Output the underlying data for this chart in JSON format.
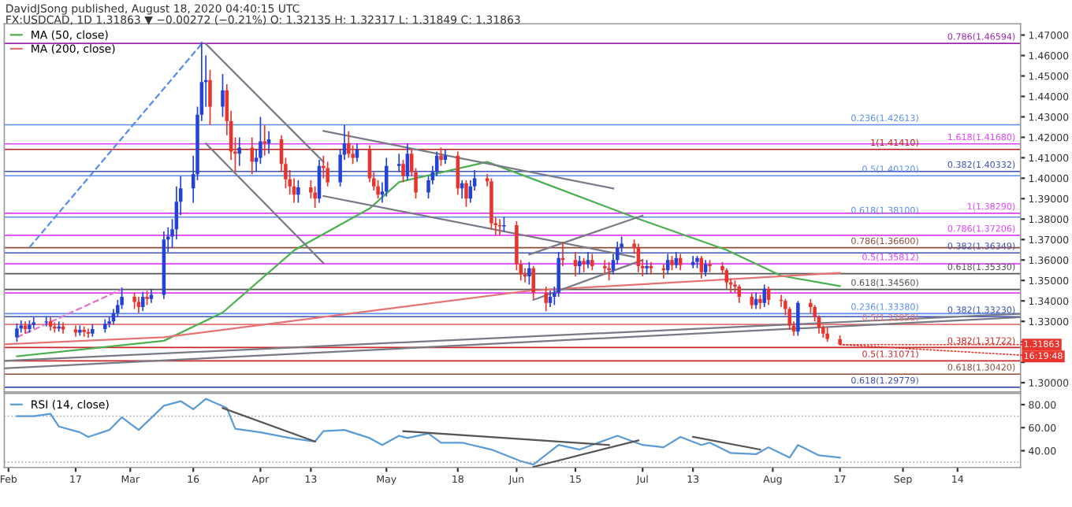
{
  "chart_data": [
    {
      "type": "candlestick",
      "title": "DavidJSong published, August 18, 2020 04:40:15 UTC",
      "subtitle": "FX:USDCAD, 1D 1.31863 ▼ −0.00272 (−0.21%) O: 1.32135 H: 1.32317 L: 1.31849 C: 1.31863",
      "x": [
        "2020-02-03",
        "2020-02-04",
        "2020-02-05",
        "2020-02-06",
        "2020-02-07",
        "2020-02-10",
        "2020-02-11",
        "2020-02-12",
        "2020-02-13",
        "2020-02-14",
        "2020-02-17",
        "2020-02-18",
        "2020-02-19",
        "2020-02-20",
        "2020-02-21",
        "2020-02-24",
        "2020-02-25",
        "2020-02-26",
        "2020-02-27",
        "2020-02-28",
        "2020-03-02",
        "2020-03-03",
        "2020-03-04",
        "2020-03-05",
        "2020-03-06",
        "2020-03-09",
        "2020-03-10",
        "2020-03-11",
        "2020-03-12",
        "2020-03-13",
        "2020-03-16",
        "2020-03-17",
        "2020-03-18",
        "2020-03-19",
        "2020-03-20",
        "2020-03-23",
        "2020-03-24",
        "2020-03-25",
        "2020-03-26",
        "2020-03-27",
        "2020-03-30",
        "2020-03-31",
        "2020-04-01",
        "2020-04-02",
        "2020-04-03",
        "2020-04-06",
        "2020-04-07",
        "2020-04-08",
        "2020-04-09",
        "2020-04-10",
        "2020-04-13",
        "2020-04-14",
        "2020-04-15",
        "2020-04-16",
        "2020-04-17",
        "2020-04-20",
        "2020-04-21",
        "2020-04-22",
        "2020-04-23",
        "2020-04-24",
        "2020-04-27",
        "2020-04-28",
        "2020-04-29",
        "2020-04-30",
        "2020-05-01",
        "2020-05-04",
        "2020-05-05",
        "2020-05-06",
        "2020-05-07",
        "2020-05-08",
        "2020-05-11",
        "2020-05-12",
        "2020-05-13",
        "2020-05-14",
        "2020-05-15",
        "2020-05-18",
        "2020-05-19",
        "2020-05-20",
        "2020-05-21",
        "2020-05-22",
        "2020-05-25",
        "2020-05-26",
        "2020-05-27",
        "2020-05-28",
        "2020-05-29",
        "2020-06-01",
        "2020-06-02",
        "2020-06-03",
        "2020-06-04",
        "2020-06-05",
        "2020-06-08",
        "2020-06-09",
        "2020-06-10",
        "2020-06-11",
        "2020-06-12",
        "2020-06-15",
        "2020-06-16",
        "2020-06-17",
        "2020-06-18",
        "2020-06-19",
        "2020-06-22",
        "2020-06-23",
        "2020-06-24",
        "2020-06-25",
        "2020-06-26",
        "2020-06-29",
        "2020-06-30",
        "2020-07-01",
        "2020-07-02",
        "2020-07-03",
        "2020-07-06",
        "2020-07-07",
        "2020-07-08",
        "2020-07-09",
        "2020-07-10",
        "2020-07-13",
        "2020-07-14",
        "2020-07-15",
        "2020-07-16",
        "2020-07-17",
        "2020-07-20",
        "2020-07-21",
        "2020-07-22",
        "2020-07-23",
        "2020-07-24",
        "2020-07-27",
        "2020-07-28",
        "2020-07-29",
        "2020-07-30",
        "2020-07-31",
        "2020-08-03",
        "2020-08-04",
        "2020-08-05",
        "2020-08-06",
        "2020-08-07",
        "2020-08-10",
        "2020-08-11",
        "2020-08-12",
        "2020-08-13",
        "2020-08-14",
        "2020-08-17"
      ],
      "ohlc": [
        [
          1.3222,
          1.329,
          1.32,
          1.3265
        ],
        [
          1.3265,
          1.3305,
          1.3245,
          1.328
        ],
        [
          1.328,
          1.33,
          1.324,
          1.3262
        ],
        [
          1.3262,
          1.3305,
          1.3245,
          1.3282
        ],
        [
          1.3282,
          1.332,
          1.3265,
          1.3295
        ],
        [
          1.3295,
          1.3325,
          1.3275,
          1.33
        ],
        [
          1.33,
          1.332,
          1.3255,
          1.3275
        ],
        [
          1.3275,
          1.3295,
          1.3245,
          1.3265
        ],
        [
          1.3265,
          1.33,
          1.325,
          1.3275
        ],
        [
          1.3275,
          1.3295,
          1.324,
          1.326
        ],
        [
          1.326,
          1.328,
          1.3225,
          1.3245
        ],
        [
          1.3245,
          1.328,
          1.323,
          1.3258
        ],
        [
          1.3258,
          1.3275,
          1.3225,
          1.3248
        ],
        [
          1.3248,
          1.3265,
          1.322,
          1.324
        ],
        [
          1.324,
          1.3285,
          1.3225,
          1.3262
        ],
        [
          1.3262,
          1.331,
          1.3245,
          1.3288
        ],
        [
          1.3288,
          1.332,
          1.327,
          1.33
        ],
        [
          1.33,
          1.336,
          1.3285,
          1.334
        ],
        [
          1.334,
          1.3405,
          1.332,
          1.338
        ],
        [
          1.338,
          1.3465,
          1.336,
          1.342
        ],
        [
          1.342,
          1.344,
          1.336,
          1.3395
        ],
        [
          1.3395,
          1.342,
          1.334,
          1.337
        ],
        [
          1.337,
          1.3445,
          1.335,
          1.342
        ],
        [
          1.342,
          1.345,
          1.338,
          1.341
        ],
        [
          1.341,
          1.346,
          1.339,
          1.343
        ],
        [
          1.343,
          1.374,
          1.341,
          1.37
        ],
        [
          1.37,
          1.376,
          1.364,
          1.3715
        ],
        [
          1.3715,
          1.38,
          1.366,
          1.375
        ],
        [
          1.375,
          1.396,
          1.37,
          1.3885
        ],
        [
          1.3885,
          1.401,
          1.382,
          1.395
        ],
        [
          1.395,
          1.411,
          1.388,
          1.402
        ],
        [
          1.402,
          1.435,
          1.399,
          1.431
        ],
        [
          1.431,
          1.4667,
          1.428,
          1.447
        ],
        [
          1.447,
          1.46,
          1.435,
          1.448
        ],
        [
          1.448,
          1.453,
          1.426,
          1.435
        ],
        [
          1.435,
          1.451,
          1.43,
          1.443
        ],
        [
          1.443,
          1.446,
          1.421,
          1.428
        ],
        [
          1.428,
          1.433,
          1.409,
          1.413
        ],
        [
          1.413,
          1.42,
          1.403,
          1.412
        ],
        [
          1.412,
          1.42,
          1.406,
          1.415
        ],
        [
          1.415,
          1.42,
          1.402,
          1.408
        ],
        [
          1.408,
          1.414,
          1.403,
          1.41
        ],
        [
          1.41,
          1.43,
          1.407,
          1.418
        ],
        [
          1.418,
          1.426,
          1.411,
          1.417
        ],
        [
          1.417,
          1.423,
          1.412,
          1.419
        ],
        [
          1.419,
          1.421,
          1.403,
          1.407
        ],
        [
          1.407,
          1.41,
          1.395,
          1.3995
        ],
        [
          1.3995,
          1.404,
          1.392,
          1.396
        ],
        [
          1.396,
          1.4,
          1.388,
          1.392
        ],
        [
          1.392,
          1.399,
          1.388,
          1.3955
        ],
        [
          1.3955,
          1.399,
          1.39,
          1.393
        ],
        [
          1.393,
          1.396,
          1.3855,
          1.39
        ],
        [
          1.39,
          1.409,
          1.388,
          1.406
        ],
        [
          1.406,
          1.411,
          1.4,
          1.405
        ],
        [
          1.405,
          1.408,
          1.396,
          1.398
        ],
        [
          1.398,
          1.414,
          1.396,
          1.4115
        ],
        [
          1.4115,
          1.426,
          1.409,
          1.417
        ],
        [
          1.417,
          1.423,
          1.41,
          1.412
        ],
        [
          1.412,
          1.416,
          1.407,
          1.41
        ],
        [
          1.41,
          1.417,
          1.408,
          1.414
        ],
        [
          1.414,
          1.416,
          1.398,
          1.4
        ],
        [
          1.4,
          1.403,
          1.394,
          1.396
        ],
        [
          1.396,
          1.399,
          1.39,
          1.392
        ],
        [
          1.392,
          1.398,
          1.388,
          1.3935
        ],
        [
          1.3935,
          1.41,
          1.391,
          1.406
        ],
        [
          1.406,
          1.412,
          1.403,
          1.407
        ],
        [
          1.407,
          1.409,
          1.398,
          1.401
        ],
        [
          1.401,
          1.417,
          1.399,
          1.412
        ],
        [
          1.412,
          1.414,
          1.401,
          1.403
        ],
        [
          1.403,
          1.405,
          1.39,
          1.393
        ],
        [
          1.393,
          1.401,
          1.39,
          1.399
        ],
        [
          1.399,
          1.406,
          1.397,
          1.403
        ],
        [
          1.403,
          1.413,
          1.401,
          1.411
        ],
        [
          1.411,
          1.415,
          1.406,
          1.409
        ],
        [
          1.409,
          1.414,
          1.407,
          1.411
        ],
        [
          1.411,
          1.413,
          1.392,
          1.395
        ],
        [
          1.395,
          1.399,
          1.39,
          1.3975
        ],
        [
          1.3975,
          1.399,
          1.386,
          1.39
        ],
        [
          1.39,
          1.399,
          1.388,
          1.396
        ],
        [
          1.396,
          1.404,
          1.394,
          1.4
        ],
        [
          1.4,
          1.402,
          1.396,
          1.3985
        ],
        [
          1.3985,
          1.4,
          1.375,
          1.378
        ],
        [
          1.378,
          1.381,
          1.372,
          1.377
        ],
        [
          1.377,
          1.38,
          1.372,
          1.3765
        ],
        [
          1.3765,
          1.381,
          1.374,
          1.377
        ],
        [
          1.377,
          1.379,
          1.355,
          1.358
        ],
        [
          1.358,
          1.36,
          1.35,
          1.353
        ],
        [
          1.353,
          1.356,
          1.349,
          1.352
        ],
        [
          1.352,
          1.359,
          1.348,
          1.356
        ],
        [
          1.356,
          1.357,
          1.341,
          1.344
        ],
        [
          1.344,
          1.347,
          1.335,
          1.339
        ],
        [
          1.339,
          1.345,
          1.337,
          1.342
        ],
        [
          1.342,
          1.347,
          1.338,
          1.344
        ],
        [
          1.344,
          1.364,
          1.342,
          1.361
        ],
        [
          1.361,
          1.369,
          1.357,
          1.36
        ],
        [
          1.36,
          1.364,
          1.352,
          1.357
        ],
        [
          1.357,
          1.362,
          1.353,
          1.3595
        ],
        [
          1.3595,
          1.361,
          1.354,
          1.358
        ],
        [
          1.358,
          1.364,
          1.356,
          1.36
        ],
        [
          1.36,
          1.363,
          1.355,
          1.357
        ],
        [
          1.357,
          1.36,
          1.353,
          1.356
        ],
        [
          1.356,
          1.359,
          1.35,
          1.355
        ],
        [
          1.355,
          1.363,
          1.353,
          1.36
        ],
        [
          1.36,
          1.369,
          1.358,
          1.366
        ],
        [
          1.366,
          1.3715,
          1.364,
          1.368
        ],
        [
          1.368,
          1.37,
          1.363,
          1.366
        ],
        [
          1.366,
          1.368,
          1.354,
          1.357
        ],
        [
          1.357,
          1.36,
          1.352,
          1.356
        ],
        [
          1.356,
          1.36,
          1.353,
          1.357
        ],
        [
          1.357,
          1.359,
          1.353,
          1.356
        ],
        [
          1.356,
          1.358,
          1.351,
          1.355
        ],
        [
          1.355,
          1.363,
          1.353,
          1.36
        ],
        [
          1.36,
          1.362,
          1.355,
          1.3575
        ],
        [
          1.3575,
          1.364,
          1.356,
          1.361
        ],
        [
          1.361,
          1.363,
          1.355,
          1.3575
        ],
        [
          1.3575,
          1.362,
          1.356,
          1.359
        ],
        [
          1.359,
          1.362,
          1.356,
          1.361
        ],
        [
          1.361,
          1.362,
          1.351,
          1.354
        ],
        [
          1.354,
          1.36,
          1.352,
          1.358
        ],
        [
          1.358,
          1.36,
          1.354,
          1.357
        ],
        [
          1.357,
          1.359,
          1.353,
          1.355
        ],
        [
          1.355,
          1.356,
          1.346,
          1.349
        ],
        [
          1.349,
          1.351,
          1.344,
          1.348
        ],
        [
          1.348,
          1.35,
          1.344,
          1.347
        ],
        [
          1.347,
          1.348,
          1.339,
          1.342
        ],
        [
          1.342,
          1.344,
          1.336,
          1.338
        ],
        [
          1.338,
          1.344,
          1.336,
          1.341
        ],
        [
          1.341,
          1.343,
          1.336,
          1.339
        ],
        [
          1.339,
          1.348,
          1.337,
          1.346
        ],
        [
          1.346,
          1.347,
          1.338,
          1.3405
        ],
        [
          1.3405,
          1.343,
          1.337,
          1.34
        ],
        [
          1.34,
          1.341,
          1.333,
          1.336
        ],
        [
          1.336,
          1.337,
          1.326,
          1.328
        ],
        [
          1.328,
          1.33,
          1.323,
          1.325
        ],
        [
          1.325,
          1.34,
          1.323,
          1.339
        ],
        [
          1.339,
          1.341,
          1.334,
          1.337
        ],
        [
          1.337,
          1.338,
          1.33,
          1.332
        ],
        [
          1.332,
          1.333,
          1.324,
          1.327
        ],
        [
          1.327,
          1.328,
          1.322,
          1.324
        ],
        [
          1.324,
          1.327,
          1.32,
          1.3214
        ],
        [
          1.32135,
          1.32317,
          1.31849,
          1.31863
        ]
      ],
      "colors": [
        "#2343d8",
        "#2343d8",
        "#e8342c",
        "#2343d8",
        "#2343d8",
        "#2343d8",
        "#e8342c",
        "#e8342c",
        "#2343d8",
        "#e8342c",
        "#e8342c",
        "#2343d8",
        "#e8342c",
        "#e8342c",
        "#2343d8",
        "#2343d8",
        "#2343d8",
        "#2343d8",
        "#2343d8",
        "#2343d8",
        "#e8342c",
        "#e8342c",
        "#2343d8",
        "#e8342c",
        "#2343d8",
        "#2343d8",
        "#2343d8",
        "#2343d8",
        "#2343d8",
        "#2343d8",
        "#2343d8",
        "#2343d8",
        "#2343d8",
        "#2343d8",
        "#e8342c",
        "#2343d8",
        "#e8342c",
        "#e8342c",
        "#e8342c",
        "#2343d8",
        "#e8342c",
        "#2343d8",
        "#2343d8",
        "#e8342c",
        "#2343d8",
        "#e8342c",
        "#e8342c",
        "#e8342c",
        "#e8342c",
        "#2343d8",
        "#e8342c",
        "#e8342c",
        "#2343d8",
        "#e8342c",
        "#e8342c",
        "#2343d8",
        "#2343d8",
        "#e8342c",
        "#e8342c",
        "#2343d8",
        "#e8342c",
        "#e8342c",
        "#e8342c",
        "#2343d8",
        "#2343d8",
        "#2343d8",
        "#e8342c",
        "#2343d8",
        "#e8342c",
        "#e8342c",
        "#2343d8",
        "#2343d8",
        "#2343d8",
        "#e8342c",
        "#2343d8",
        "#e8342c",
        "#2343d8",
        "#e8342c",
        "#2343d8",
        "#2343d8",
        "#e8342c",
        "#e8342c",
        "#e8342c",
        "#e8342c",
        "#2343d8",
        "#e8342c",
        "#e8342c",
        "#e8342c",
        "#2343d8",
        "#e8342c",
        "#e8342c",
        "#2343d8",
        "#2343d8",
        "#2343d8",
        "#e8342c",
        "#e8342c",
        "#2343d8",
        "#e8342c",
        "#2343d8",
        "#e8342c",
        "#e8342c",
        "#e8342c",
        "#2343d8",
        "#2343d8",
        "#2343d8",
        "#e8342c",
        "#e8342c",
        "#e8342c",
        "#2343d8",
        "#e8342c",
        "#e8342c",
        "#2343d8",
        "#e8342c",
        "#2343d8",
        "#e8342c",
        "#2343d8",
        "#2343d8",
        "#e8342c",
        "#2343d8",
        "#e8342c",
        "#e8342c",
        "#e8342c",
        "#e8342c",
        "#e8342c",
        "#e8342c",
        "#e8342c",
        "#2343d8",
        "#e8342c",
        "#2343d8",
        "#e8342c",
        "#e8342c",
        "#e8342c",
        "#e8342c",
        "#e8342c",
        "#2343d8",
        "#e8342c",
        "#e8342c",
        "#e8342c",
        "#e8342c",
        "#e8342c",
        "#e8342c"
      ],
      "series": [
        {
          "type": "line",
          "name": "MA (50, close)",
          "color": "#4caf50",
          "x": [
            "2020-02-03",
            "2020-03-09",
            "2020-03-23",
            "2020-04-09",
            "2020-04-27",
            "2020-05-04",
            "2020-05-25",
            "2020-06-04",
            "2020-06-30",
            "2020-07-21",
            "2020-08-03",
            "2020-08-17"
          ],
          "values": [
            1.3129,
            1.3205,
            1.3343,
            1.3647,
            1.3852,
            1.3981,
            1.408,
            1.4003,
            1.3801,
            1.3649,
            1.3523,
            1.3472
          ]
        },
        {
          "type": "line",
          "name": "MA (200, close)",
          "color": "#e57373",
          "x": [
            "2020-01-31",
            "2020-03-09",
            "2020-06-04",
            "2020-08-17"
          ],
          "values": [
            1.3188,
            1.3222,
            1.345,
            1.3537
          ]
        },
        {
          "type": "line",
          "color": "#787b86",
          "x": [
            "2020-03-19",
            "2020-04-16"
          ],
          "values": [
            1.4657,
            1.408
          ]
        },
        {
          "type": "line",
          "color": "#787b86",
          "x": [
            "2020-03-19",
            "2020-04-16"
          ],
          "values": [
            1.417,
            1.3585
          ]
        },
        {
          "type": "line",
          "color": "#787b86",
          "x": [
            "2020-04-16",
            "2020-06-24"
          ],
          "values": [
            1.4231,
            1.395
          ]
        },
        {
          "type": "line",
          "color": "#787b86",
          "x": [
            "2020-04-16",
            "2020-06-29"
          ],
          "values": [
            1.3913,
            1.3615
          ]
        },
        {
          "type": "line",
          "color": "#787b86",
          "x": [
            "2020-06-04",
            "2020-07-01"
          ],
          "values": [
            1.3627,
            1.3817
          ]
        },
        {
          "type": "line",
          "color": "#787b86",
          "x": [
            "2020-06-05",
            "2020-07-01"
          ],
          "values": [
            1.3405,
            1.36
          ]
        },
        {
          "type": "line",
          "color": "#787b86",
          "x": [
            "2020-01-31",
            "2020-09-29"
          ],
          "values": [
            1.3107,
            1.3337
          ]
        },
        {
          "type": "line",
          "color": "#787b86",
          "x": [
            "2020-01-31",
            "2020-09-29"
          ],
          "values": [
            1.307,
            1.332
          ]
        },
        {
          "type": "line",
          "color": "#5b8def",
          "line_style": "dashed",
          "x": [
            "2020-02-06",
            "2020-03-18"
          ],
          "values": [
            1.3662,
            1.4657
          ]
        },
        {
          "type": "line",
          "color": "#e573c8",
          "line_style": "dashed",
          "x": [
            "2020-02-03",
            "2020-02-28"
          ],
          "values": [
            1.3222,
            1.3457
          ]
        }
      ],
      "ref_lines": [
        {
          "axis": "y",
          "value": 1.46594,
          "label": "0.786(1.46594)",
          "color": "#9c27b0"
        },
        {
          "axis": "y",
          "value": 1.42613,
          "label": "0.236(1.42613)",
          "color": "#5b8def"
        },
        {
          "axis": "y",
          "value": 1.4168,
          "label": "1.618(1.41680)",
          "color": "#e040fb"
        },
        {
          "axis": "y",
          "value": 1.4141,
          "label": "1(1.41410)",
          "color": "#b71c1c"
        },
        {
          "axis": "y",
          "value": 1.40332,
          "label": "0.382(1.40332)",
          "color": "#3f51b5"
        },
        {
          "axis": "y",
          "value": 1.4012,
          "label": "0.5(1.40120)",
          "color": "#5b8def"
        },
        {
          "axis": "y",
          "value": 1.3829,
          "label": "1(1.38290)",
          "color": "#e040fb"
        },
        {
          "axis": "y",
          "value": 1.381,
          "label": "0.618(1.38100)",
          "color": "#5b8def"
        },
        {
          "axis": "y",
          "value": 1.37206,
          "label": "0.786(1.37206)",
          "color": "#e040fb"
        },
        {
          "axis": "y",
          "value": 1.366,
          "label": "0.786(1.36600)",
          "color": "#8d4b3a"
        },
        {
          "axis": "y",
          "value": 1.36349,
          "label": "0.382(1.36349)",
          "color": "#3f51b5"
        },
        {
          "axis": "y",
          "value": 1.35812,
          "label": "0.5(1.35812)",
          "color": "#e040fb"
        },
        {
          "axis": "y",
          "value": 1.3533,
          "label": "0.618(1.35330)",
          "color": "#555555"
        },
        {
          "axis": "y",
          "value": 1.3456,
          "label": "0.618(1.34560)",
          "color": "#555555"
        },
        {
          "axis": "y",
          "value": 1.3439,
          "color": "#e040fb"
        },
        {
          "axis": "y",
          "value": 1.3338,
          "label": "0.236(1.33380)",
          "color": "#5b8def"
        },
        {
          "axis": "y",
          "value": 1.3323,
          "label": "0.382(1.33230)",
          "color": "#3f51b5"
        },
        {
          "axis": "y",
          "value": 1.3285,
          "label": "0.5(1.32850)",
          "color": "#e57373"
        },
        {
          "axis": "y",
          "value": 1.31722,
          "label": "0.382(1.31722)",
          "color": "#c62828"
        },
        {
          "axis": "y",
          "value": 1.31071,
          "label": "0.5(1.31071)",
          "color": "#c62828"
        },
        {
          "axis": "y",
          "value": 1.3042,
          "label": "0.618(1.30420)",
          "color": "#8d4b3a"
        },
        {
          "axis": "y",
          "value": 1.29779,
          "label": "0.618(1.29779)",
          "color": "#3f51b5"
        }
      ],
      "annotations": [
        {
          "text": "1.31863",
          "x": "2020-08-17",
          "y": 1.31863
        },
        {
          "text": "16:19:48",
          "x": "2020-08-17",
          "y": 1.31863
        }
      ],
      "legend": "top left",
      "grid": false,
      "tick_labels": "y",
      "xlim": [
        "2020-01-31",
        "2020-09-29"
      ],
      "ylim": [
        1.2955,
        1.4755
      ],
      "yticks": [
        {
          "value": 1.3,
          "label": "1.30000"
        },
        {
          "value": 1.31,
          "label": null
        },
        {
          "value": 1.32,
          "label": null
        },
        {
          "value": 1.33,
          "label": "1.33000"
        },
        {
          "value": 1.34,
          "label": "1.34000"
        },
        {
          "value": 1.35,
          "label": "1.35000"
        },
        {
          "value": 1.36,
          "label": "1.36000"
        },
        {
          "value": 1.37,
          "label": "1.37000"
        },
        {
          "value": 1.38,
          "label": "1.38000"
        },
        {
          "value": 1.39,
          "label": "1.39000"
        },
        {
          "value": 1.4,
          "label": "1.40000"
        },
        {
          "value": 1.41,
          "label": "1.41000"
        },
        {
          "value": 1.42,
          "label": "1.42000"
        },
        {
          "value": 1.43,
          "label": "1.43000"
        },
        {
          "value": 1.44,
          "label": "1.44000"
        },
        {
          "value": 1.45,
          "label": "1.45000"
        },
        {
          "value": 1.46,
          "label": "1.46000"
        },
        {
          "value": 1.47,
          "label": "1.47000"
        }
      ]
    },
    {
      "type": "line",
      "legend": "top left",
      "grid": false,
      "series": [
        {
          "name": "RSI (14, close)",
          "color": "#5b9bd5",
          "x": [
            "2020-02-03",
            "2020-02-07",
            "2020-02-11",
            "2020-02-13",
            "2020-02-18",
            "2020-02-20",
            "2020-02-25",
            "2020-02-28",
            "2020-03-03",
            "2020-03-09",
            "2020-03-13",
            "2020-03-16",
            "2020-03-19",
            "2020-03-24",
            "2020-03-26",
            "2020-04-01",
            "2020-04-08",
            "2020-04-14",
            "2020-04-16",
            "2020-04-21",
            "2020-04-27",
            "2020-04-30",
            "2020-05-04",
            "2020-05-06",
            "2020-05-11",
            "2020-05-14",
            "2020-05-19",
            "2020-05-26",
            "2020-06-02",
            "2020-06-05",
            "2020-06-11",
            "2020-06-16",
            "2020-06-19",
            "2020-06-25",
            "2020-07-01",
            "2020-07-06",
            "2020-07-10",
            "2020-07-15",
            "2020-07-17",
            "2020-07-22",
            "2020-07-28",
            "2020-07-31",
            "2020-08-05",
            "2020-08-07",
            "2020-08-12",
            "2020-08-17"
          ],
          "values": [
            70,
            70,
            72,
            61,
            56,
            52,
            58,
            69,
            58,
            79,
            83,
            76,
            85,
            77,
            59,
            56,
            51,
            48,
            57,
            58,
            51,
            45,
            53,
            51,
            55,
            47,
            47,
            41,
            31,
            28,
            45,
            41,
            45,
            53,
            45,
            43,
            52,
            45,
            47,
            38,
            37,
            43,
            34,
            45,
            36,
            34
          ]
        },
        {
          "type": "line",
          "color": "#555555",
          "x": [
            "2020-03-23",
            "2020-04-14"
          ],
          "values": [
            77,
            48
          ]
        },
        {
          "type": "line",
          "color": "#555555",
          "x": [
            "2020-05-05",
            "2020-06-23"
          ],
          "values": [
            57,
            45
          ]
        },
        {
          "type": "line",
          "color": "#555555",
          "x": [
            "2020-06-05",
            "2020-06-30"
          ],
          "values": [
            26,
            49
          ]
        },
        {
          "type": "line",
          "color": "#555555",
          "x": [
            "2020-07-13",
            "2020-07-29"
          ],
          "values": [
            52,
            41
          ]
        }
      ],
      "ref_lines": [
        {
          "axis": "y",
          "value": 70,
          "color": "#b0b0b0",
          "line_style": "dotted"
        },
        {
          "axis": "y",
          "value": 30,
          "color": "#b0b0b0",
          "line_style": "dotted"
        }
      ],
      "xlim": [
        "2020-01-31",
        "2020-09-29"
      ],
      "ylim": [
        25.5,
        89.7
      ],
      "xticks": [
        {
          "value": "2020-02-01",
          "label": "Feb"
        },
        {
          "value": "2020-02-17",
          "label": "17"
        },
        {
          "value": "2020-03-01",
          "label": "Mar"
        },
        {
          "value": "2020-03-16",
          "label": "16"
        },
        {
          "value": "2020-04-01",
          "label": "Apr"
        },
        {
          "value": "2020-04-13",
          "label": "13"
        },
        {
          "value": "2020-05-01",
          "label": "May"
        },
        {
          "value": "2020-05-18",
          "label": "18"
        },
        {
          "value": "2020-06-01",
          "label": "Jun"
        },
        {
          "value": "2020-06-15",
          "label": "15"
        },
        {
          "value": "2020-07-01",
          "label": "Jul"
        },
        {
          "value": "2020-07-13",
          "label": "13"
        },
        {
          "value": "2020-08-01",
          "label": "Aug"
        },
        {
          "value": "2020-08-17",
          "label": "17"
        },
        {
          "value": "2020-09-01",
          "label": "Sep"
        },
        {
          "value": "2020-09-14",
          "label": "14"
        }
      ],
      "yticks": [
        {
          "value": 40,
          "label": "40.00"
        },
        {
          "value": 60,
          "label": "60.00"
        },
        {
          "value": 80,
          "label": "80.00"
        }
      ]
    }
  ]
}
